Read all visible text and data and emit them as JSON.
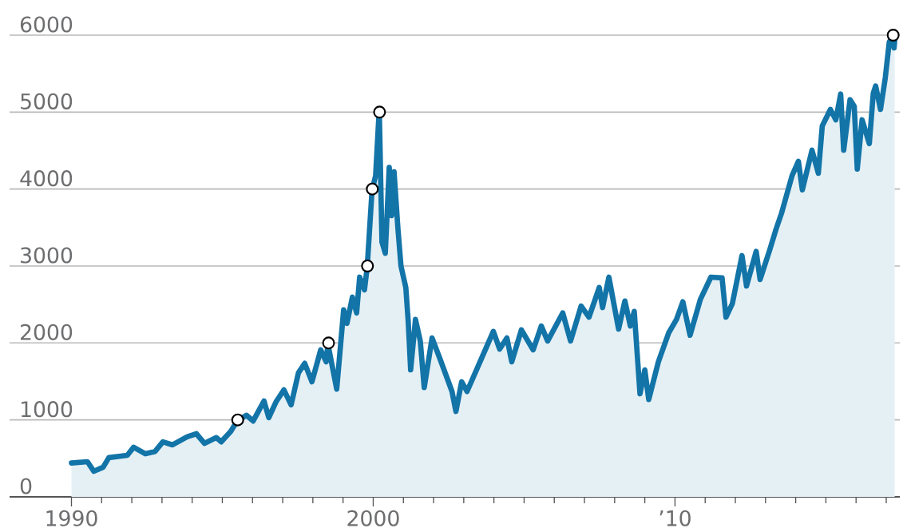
{
  "chart_data": {
    "type": "area",
    "xlim": [
      1987.95,
      2017.45
    ],
    "ylim": [
      0,
      6000
    ],
    "xticks": [
      {
        "value": 1990,
        "label": "1990"
      },
      {
        "value": 1991,
        "label": null
      },
      {
        "value": 1992,
        "label": null
      },
      {
        "value": 1993,
        "label": null
      },
      {
        "value": 1994,
        "label": null
      },
      {
        "value": 1995,
        "label": null
      },
      {
        "value": 1996,
        "label": null
      },
      {
        "value": 1997,
        "label": null
      },
      {
        "value": 1998,
        "label": null
      },
      {
        "value": 1999,
        "label": null
      },
      {
        "value": 2000,
        "label": "2000"
      },
      {
        "value": 2001,
        "label": null
      },
      {
        "value": 2002,
        "label": null
      },
      {
        "value": 2003,
        "label": null
      },
      {
        "value": 2004,
        "label": null
      },
      {
        "value": 2005,
        "label": null
      },
      {
        "value": 2006,
        "label": null
      },
      {
        "value": 2007,
        "label": null
      },
      {
        "value": 2008,
        "label": null
      },
      {
        "value": 2009,
        "label": null
      },
      {
        "value": 2010,
        "label": "’10"
      },
      {
        "value": 2011,
        "label": null
      },
      {
        "value": 2012,
        "label": null
      },
      {
        "value": 2013,
        "label": null
      },
      {
        "value": 2014,
        "label": null
      },
      {
        "value": 2015,
        "label": null
      },
      {
        "value": 2016,
        "label": null
      },
      {
        "value": 2017,
        "label": null
      }
    ],
    "yticks": [
      0,
      1000,
      2000,
      3000,
      4000,
      5000,
      6000
    ],
    "grid": "y",
    "series": [
      {
        "color": "#1374a8",
        "x": [
          1990.0,
          1990.53,
          1990.74,
          1991.05,
          1991.24,
          1991.85,
          1992.06,
          1992.45,
          1992.77,
          1993.03,
          1993.35,
          1993.83,
          1994.14,
          1994.41,
          1994.8,
          1994.96,
          1995.28,
          1995.5,
          1995.8,
          1996.02,
          1996.38,
          1996.54,
          1996.78,
          1997.04,
          1997.28,
          1997.52,
          1997.73,
          1997.97,
          1998.26,
          1998.44,
          1998.5,
          1998.79,
          1999.02,
          1999.13,
          1999.31,
          1999.45,
          1999.55,
          1999.71,
          1999.8,
          1999.96,
          2000.08,
          2000.2,
          2000.29,
          2000.4,
          2000.53,
          2000.61,
          2000.69,
          2000.82,
          2000.92,
          2001.08,
          2001.16,
          2001.24,
          2001.4,
          2001.56,
          2001.69,
          2001.95,
          2002.22,
          2002.61,
          2002.74,
          2002.93,
          2003.11,
          2003.54,
          2003.98,
          2004.19,
          2004.43,
          2004.59,
          2004.91,
          2005.3,
          2005.57,
          2005.78,
          2006.28,
          2006.54,
          2006.89,
          2007.15,
          2007.49,
          2007.6,
          2007.81,
          2008.13,
          2008.34,
          2008.52,
          2008.65,
          2008.84,
          2009.0,
          2009.13,
          2009.45,
          2009.79,
          2010.05,
          2010.26,
          2010.5,
          2010.84,
          2011.19,
          2011.56,
          2011.69,
          2011.9,
          2012.22,
          2012.37,
          2012.69,
          2012.82,
          2013.14,
          2013.35,
          2013.53,
          2013.88,
          2014.09,
          2014.22,
          2014.54,
          2014.75,
          2014.88,
          2015.15,
          2015.33,
          2015.49,
          2015.59,
          2015.8,
          2015.94,
          2016.04,
          2016.2,
          2016.44,
          2016.57,
          2016.65,
          2016.81,
          2016.97,
          2017.1,
          2017.23,
          2017.26,
          2017.28
        ],
        "values": [
          440,
          457,
          332,
          385,
          510,
          540,
          645,
          560,
          590,
          715,
          675,
          780,
          820,
          695,
          770,
          715,
          850,
          990,
          1060,
          985,
          1245,
          1030,
          1235,
          1390,
          1195,
          1610,
          1735,
          1495,
          1910,
          1755,
          1985,
          1400,
          2430,
          2255,
          2595,
          2390,
          2855,
          2690,
          2980,
          3980,
          4175,
          5040,
          3310,
          3165,
          4280,
          3655,
          4225,
          3480,
          3000,
          2720,
          2275,
          1650,
          2305,
          2025,
          1420,
          2065,
          1785,
          1370,
          1110,
          1495,
          1370,
          1755,
          2150,
          1920,
          2065,
          1755,
          2170,
          1910,
          2220,
          2025,
          2390,
          2025,
          2480,
          2335,
          2720,
          2460,
          2855,
          2180,
          2545,
          2220,
          2410,
          1340,
          1650,
          1265,
          1755,
          2130,
          2305,
          2535,
          2100,
          2565,
          2855,
          2845,
          2335,
          2510,
          3135,
          2740,
          3190,
          2825,
          3210,
          3480,
          3685,
          4175,
          4360,
          3990,
          4505,
          4205,
          4820,
          5035,
          4900,
          5235,
          4505,
          5160,
          5075,
          4260,
          4900,
          4590,
          5245,
          5340,
          5035,
          5450,
          5910,
          5990,
          5835,
          5920
        ]
      },
      {
        "type": "scatter",
        "marker": "circle",
        "color": "#ffffff",
        "x": [
          1995.51,
          1998.52,
          1999.81,
          1999.97,
          2000.21,
          2017.23
        ],
        "values": [
          1000,
          2000,
          3000,
          4000,
          5000,
          6000
        ]
      }
    ]
  }
}
